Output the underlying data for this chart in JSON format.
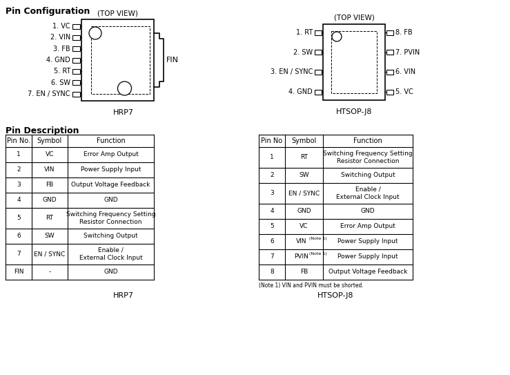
{
  "title": "Pin Configuration",
  "desc_title": "Pin Description",
  "top_view": "(TOP VIEW)",
  "hrp7_label": "HRP7",
  "htsop_label": "HTSOP-J8",
  "fin_label": "FIN",
  "note": "(Note 1) VIN and PVIN must be shorted.",
  "hrp7_left_pins": [
    "1. VC",
    "2. VIN",
    "3. FB",
    "4. GND",
    "5. RT",
    "6. SW",
    "7. EN / SYNC"
  ],
  "htsop_left_pins": [
    "1. RT",
    "2. SW",
    "3. EN / SYNC",
    "4. GND"
  ],
  "htsop_right_pins": [
    "8. FB",
    "7. PVIN",
    "6. VIN",
    "5. VC"
  ],
  "hrp7_table_headers": [
    "Pin No.",
    "Symbol",
    "Function"
  ],
  "hrp7_table_rows": [
    [
      "1",
      "VC",
      "Error Amp Output"
    ],
    [
      "2",
      "VIN",
      "Power Supply Input"
    ],
    [
      "3",
      "FB",
      "Output Voltage Feedback"
    ],
    [
      "4",
      "GND",
      "GND"
    ],
    [
      "5",
      "RT",
      "Switching Frequency Setting\nResistor Connection"
    ],
    [
      "6",
      "SW",
      "Switching Output"
    ],
    [
      "7",
      "EN / SYNC",
      "Enable /\nExternal Clock Input"
    ],
    [
      "FIN",
      "-",
      "GND"
    ]
  ],
  "htsop_table_headers": [
    "Pin No",
    "Symbol",
    "Function"
  ],
  "htsop_table_rows": [
    [
      "1",
      "RT",
      "Switching Frequency Setting\nResistor Connection"
    ],
    [
      "2",
      "SW",
      "Switching Output"
    ],
    [
      "3",
      "EN / SYNC",
      "Enable /\nExternal Clock Input"
    ],
    [
      "4",
      "GND",
      "GND"
    ],
    [
      "5",
      "VC",
      "Error Amp Output"
    ],
    [
      "6",
      "VIN",
      "Power Supply Input"
    ],
    [
      "7",
      "PVIN",
      "Power Supply Input"
    ],
    [
      "8",
      "FB",
      "Output Voltage Feedback"
    ]
  ],
  "htsop_symbol_notes": [
    false,
    false,
    false,
    false,
    false,
    true,
    true,
    false
  ],
  "bg_color": "#ffffff",
  "text_color": "#000000",
  "pin_color": "#000000"
}
